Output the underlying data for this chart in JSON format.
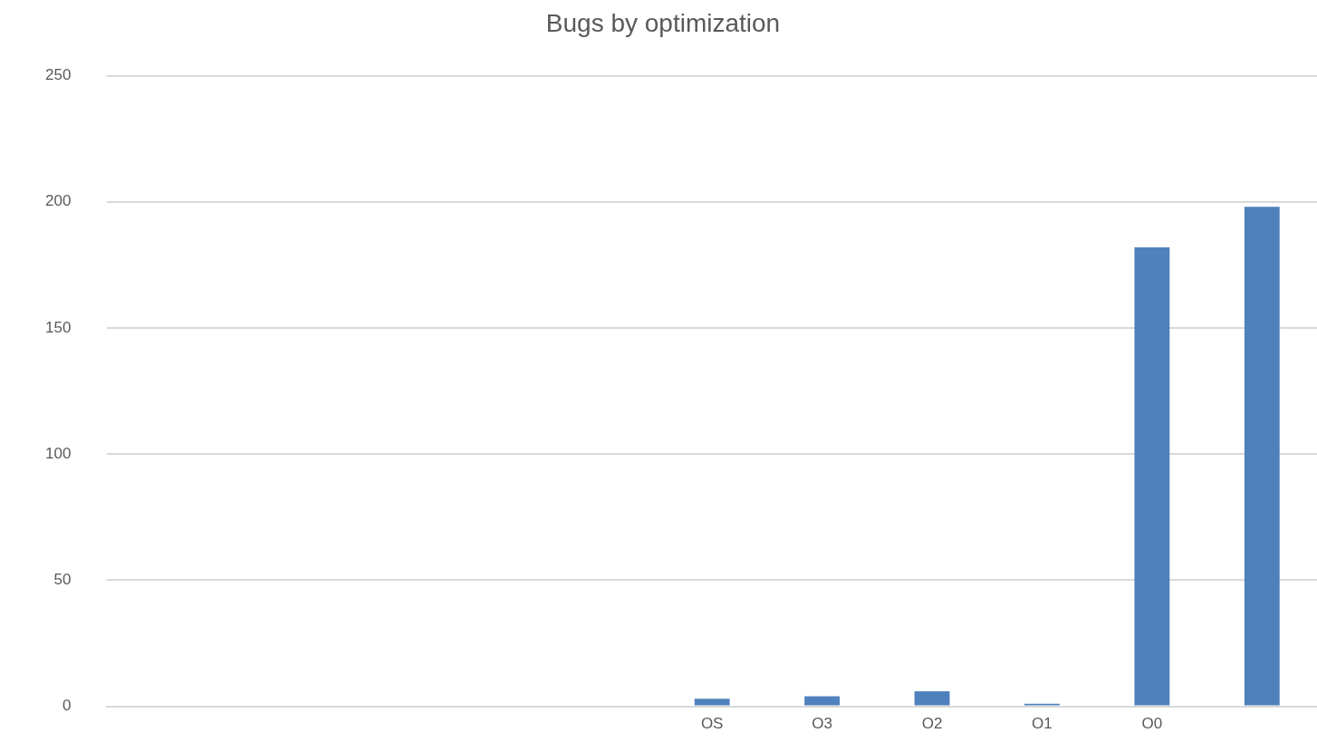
{
  "chart_data": {
    "type": "bar",
    "title": "Bugs by optimization",
    "categories": [
      null,
      null,
      null,
      null,
      null,
      "OS",
      "O3",
      "O2",
      "O1",
      "O0",
      null
    ],
    "values": [
      null,
      null,
      null,
      null,
      null,
      3,
      4,
      6,
      1,
      182,
      198
    ],
    "color": "#4f81bd",
    "ylim": [
      0,
      250
    ],
    "yticks": [
      0,
      50,
      100,
      150,
      200,
      250
    ],
    "grid": "y"
  }
}
